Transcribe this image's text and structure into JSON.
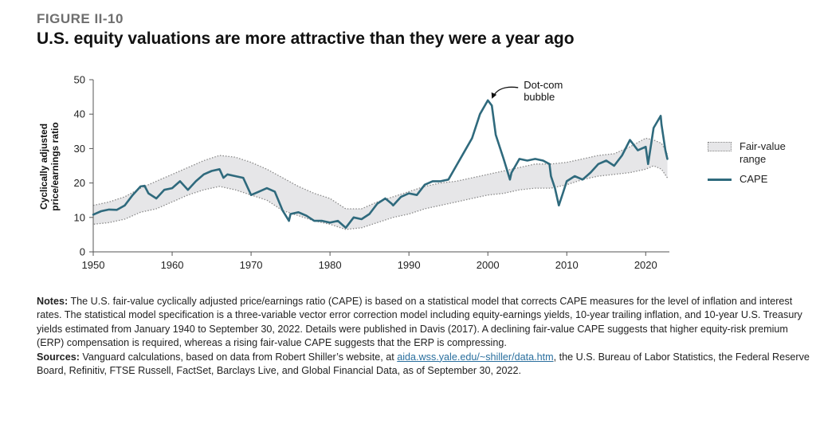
{
  "figure_label": "FIGURE II-10",
  "title": "U.S. equity valuations are more attractive than they were a year ago",
  "notes": {
    "notes_label": "Notes:",
    "notes_text": "The U.S. fair-value cyclically adjusted price/earnings ratio (CAPE) is based on a statistical model that corrects CAPE measures for the level of inflation and interest rates. The statistical model specification is a three-variable vector error correction model including equity-earnings yields, 10-year trailing inflation, and 10-year U.S. Treasury yields estimated from January 1940 to September 30, 2022. Details were published in Davis (2017). A declining fair-value CAPE suggests that higher equity-risk premium (ERP) compensation is required, whereas a rising fair-value CAPE suggests that the ERP is compressing.",
    "sources_label": "Sources:",
    "sources_text_1": "Vanguard calculations, based on data from Robert Shiller’s website, at",
    "sources_link": "aida.wss.yale.edu/~shiller/data.htm",
    "sources_text_2": ", the U.S. Bureau of Labor Statistics, the Federal Reserve Board, Refinitiv, FTSE Russell, FactSet, Barclays Live, and Global Financial Data, as of September 30, 2022."
  },
  "colors": {
    "cape_line": "#2f6a7d",
    "range_fill": "#e6e6e8",
    "range_border": "#8a8a8a"
  },
  "chart_data": {
    "type": "line",
    "ylabel": "Cyclically adjusted price/earnings ratio",
    "ylabel_lines": [
      "Cyclically adjusted",
      "price/earnings ratio"
    ],
    "xlabel": "",
    "xlim": [
      1950,
      2023
    ],
    "ylim": [
      0,
      50
    ],
    "x_ticks": [
      1950,
      1960,
      1970,
      1980,
      1990,
      2000,
      2010,
      2020
    ],
    "y_ticks": [
      0,
      10,
      20,
      30,
      40,
      50
    ],
    "grid": false,
    "legend_position": "right",
    "annotation": {
      "text_lines": [
        "Dot-com",
        "bubble"
      ],
      "x": 2000,
      "y": 44
    },
    "series": [
      {
        "name": "CAPE",
        "style": "line",
        "points": [
          [
            1950,
            10.8
          ],
          [
            1951,
            11.8
          ],
          [
            1952,
            12.3
          ],
          [
            1953,
            12.2
          ],
          [
            1954,
            13.5
          ],
          [
            1955,
            16.5
          ],
          [
            1956,
            19.0
          ],
          [
            1956.5,
            19.2
          ],
          [
            1957,
            17.0
          ],
          [
            1958,
            15.5
          ],
          [
            1959,
            18.0
          ],
          [
            1960,
            18.5
          ],
          [
            1961,
            20.5
          ],
          [
            1962,
            18.0
          ],
          [
            1963,
            20.5
          ],
          [
            1964,
            22.5
          ],
          [
            1965,
            23.5
          ],
          [
            1966,
            24.0
          ],
          [
            1966.5,
            21.5
          ],
          [
            1967,
            22.5
          ],
          [
            1968,
            22.0
          ],
          [
            1969,
            21.5
          ],
          [
            1970,
            16.5
          ],
          [
            1971,
            17.5
          ],
          [
            1972,
            18.5
          ],
          [
            1973,
            17.5
          ],
          [
            1974,
            12.0
          ],
          [
            1974.8,
            9.0
          ],
          [
            1975,
            11.0
          ],
          [
            1976,
            11.5
          ],
          [
            1977,
            10.5
          ],
          [
            1978,
            9.0
          ],
          [
            1979,
            9.0
          ],
          [
            1980,
            8.5
          ],
          [
            1981,
            9.0
          ],
          [
            1982,
            7.0
          ],
          [
            1983,
            10.0
          ],
          [
            1984,
            9.5
          ],
          [
            1985,
            11.0
          ],
          [
            1986,
            14.0
          ],
          [
            1987,
            15.5
          ],
          [
            1987.8,
            14.0
          ],
          [
            1988,
            13.5
          ],
          [
            1989,
            16.0
          ],
          [
            1990,
            17.0
          ],
          [
            1991,
            16.5
          ],
          [
            1992,
            19.5
          ],
          [
            1993,
            20.5
          ],
          [
            1994,
            20.5
          ],
          [
            1995,
            21.0
          ],
          [
            1996,
            25.0
          ],
          [
            1997,
            29.0
          ],
          [
            1998,
            33.0
          ],
          [
            1999,
            40.0
          ],
          [
            2000,
            44.0
          ],
          [
            2000.5,
            42.5
          ],
          [
            2001,
            34.0
          ],
          [
            2002,
            27.0
          ],
          [
            2002.8,
            21.0
          ],
          [
            2003,
            23.0
          ],
          [
            2004,
            27.0
          ],
          [
            2005,
            26.5
          ],
          [
            2006,
            27.0
          ],
          [
            2007,
            26.5
          ],
          [
            2007.8,
            25.5
          ],
          [
            2008,
            22.0
          ],
          [
            2008.5,
            18.5
          ],
          [
            2009,
            13.5
          ],
          [
            2009.5,
            17.0
          ],
          [
            2010,
            20.5
          ],
          [
            2011,
            22.0
          ],
          [
            2012,
            21.0
          ],
          [
            2013,
            23.0
          ],
          [
            2014,
            25.5
          ],
          [
            2015,
            26.5
          ],
          [
            2016,
            25.0
          ],
          [
            2017,
            28.0
          ],
          [
            2018,
            32.5
          ],
          [
            2019,
            29.5
          ],
          [
            2020,
            30.5
          ],
          [
            2020.3,
            25.5
          ],
          [
            2021,
            36.0
          ],
          [
            2021.9,
            39.5
          ],
          [
            2022,
            37.0
          ],
          [
            2022.5,
            29.5
          ],
          [
            2022.75,
            27.0
          ]
        ]
      },
      {
        "name": "Fair-value range",
        "legend_lines": [
          "Fair-value",
          "range"
        ],
        "style": "band",
        "x": [
          1950,
          1952,
          1954,
          1956,
          1958,
          1960,
          1962,
          1964,
          1966,
          1968,
          1970,
          1972,
          1974,
          1976,
          1978,
          1980,
          1982,
          1984,
          1986,
          1988,
          1990,
          1992,
          1994,
          1996,
          1998,
          2000,
          2002,
          2004,
          2006,
          2008,
          2010,
          2012,
          2014,
          2016,
          2018,
          2020,
          2021,
          2022,
          2022.75
        ],
        "lower": [
          8.0,
          8.5,
          9.5,
          11.5,
          12.5,
          14.5,
          16.5,
          18.0,
          19.0,
          18.0,
          16.5,
          15.0,
          12.0,
          10.5,
          9.0,
          8.0,
          6.5,
          7.0,
          8.5,
          10.0,
          11.0,
          12.5,
          13.5,
          14.5,
          15.5,
          16.5,
          17.0,
          18.0,
          18.5,
          18.5,
          19.5,
          21.0,
          22.0,
          22.5,
          23.0,
          24.0,
          25.0,
          24.0,
          21.5
        ],
        "upper": [
          13.5,
          14.5,
          16.0,
          18.5,
          20.5,
          22.5,
          24.5,
          26.5,
          28.0,
          27.5,
          26.0,
          24.0,
          21.5,
          19.0,
          17.0,
          15.5,
          12.5,
          12.5,
          14.5,
          16.0,
          17.5,
          19.0,
          20.0,
          20.5,
          21.5,
          22.5,
          23.5,
          24.5,
          25.5,
          25.5,
          26.0,
          27.0,
          28.0,
          28.5,
          30.5,
          33.0,
          32.5,
          31.5,
          28.5
        ]
      }
    ]
  }
}
